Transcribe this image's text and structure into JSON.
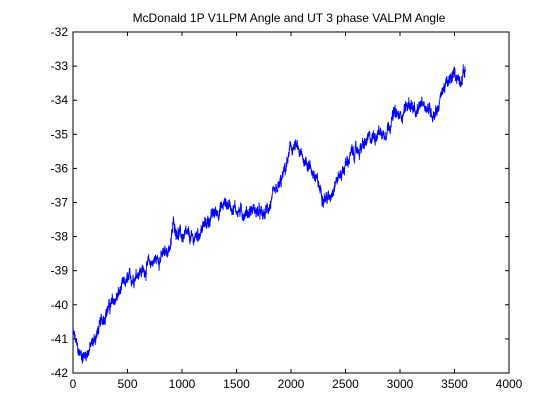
{
  "chart_data": {
    "type": "line",
    "title": "McDonald 1P V1LPM Angle and UT 3 phase VALPM Angle",
    "xlabel": "",
    "ylabel": "",
    "xlim": [
      0,
      4000
    ],
    "ylim": [
      -42,
      -32
    ],
    "xticks": [
      0,
      500,
      1000,
      1500,
      2000,
      2500,
      3000,
      3500,
      4000
    ],
    "yticks": [
      -42,
      -41,
      -40,
      -39,
      -38,
      -37,
      -36,
      -35,
      -34,
      -33,
      -32
    ],
    "xtick_labels": [
      "0",
      "500",
      "1000",
      "1500",
      "2000",
      "2500",
      "3000",
      "3500",
      "4000"
    ],
    "ytick_labels": [
      "-42",
      "-41",
      "-40",
      "-39",
      "-38",
      "-37",
      "-36",
      "-35",
      "-34",
      "-33",
      "-32"
    ],
    "grid": false,
    "legend": "none",
    "series": [
      {
        "color": "#0000ff",
        "x": [
          0,
          50,
          100,
          150,
          200,
          250,
          300,
          350,
          400,
          450,
          500,
          550,
          600,
          650,
          700,
          750,
          800,
          850,
          900,
          920,
          950,
          1000,
          1050,
          1100,
          1150,
          1200,
          1250,
          1300,
          1350,
          1400,
          1450,
          1500,
          1550,
          1600,
          1650,
          1700,
          1750,
          1800,
          1850,
          1900,
          1950,
          2000,
          2050,
          2100,
          2150,
          2200,
          2250,
          2300,
          2350,
          2400,
          2450,
          2500,
          2550,
          2600,
          2650,
          2700,
          2750,
          2800,
          2850,
          2900,
          2950,
          3000,
          3050,
          3100,
          3150,
          3200,
          3250,
          3300,
          3350,
          3400,
          3450,
          3500,
          3550,
          3600
        ],
        "values": [
          -40.8,
          -41.4,
          -41.5,
          -41.3,
          -41.0,
          -40.6,
          -40.2,
          -40.0,
          -39.8,
          -39.5,
          -39.3,
          -39.2,
          -39.0,
          -39.0,
          -38.8,
          -38.7,
          -38.6,
          -38.5,
          -38.2,
          -37.6,
          -37.8,
          -38.0,
          -38.0,
          -38.1,
          -37.9,
          -37.7,
          -37.5,
          -37.3,
          -37.2,
          -37.0,
          -37.1,
          -37.2,
          -37.3,
          -37.3,
          -37.2,
          -37.3,
          -37.4,
          -37.1,
          -36.8,
          -36.5,
          -36.0,
          -35.4,
          -35.4,
          -35.7,
          -35.8,
          -36.1,
          -36.5,
          -36.8,
          -36.9,
          -36.4,
          -36.2,
          -35.9,
          -35.6,
          -35.5,
          -35.4,
          -35.2,
          -35.1,
          -34.9,
          -35.0,
          -34.7,
          -34.4,
          -34.5,
          -34.2,
          -34.1,
          -34.5,
          -34.0,
          -34.2,
          -34.4,
          -34.2,
          -33.6,
          -33.5,
          -33.2,
          -33.4,
          -33.1
        ]
      }
    ]
  }
}
